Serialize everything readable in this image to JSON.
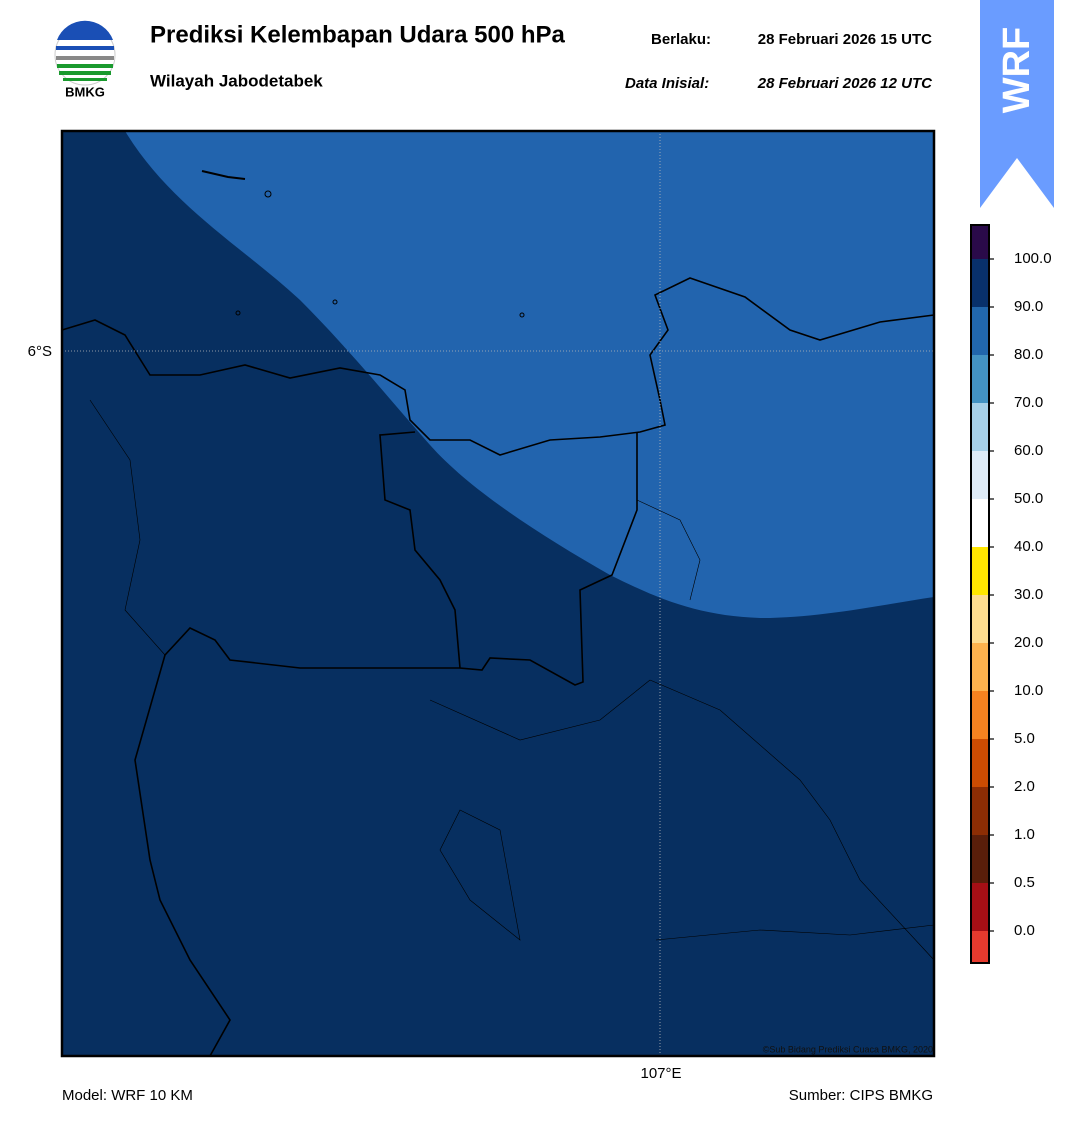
{
  "header": {
    "logo_text": "BMKG",
    "title": "Prediksi Kelembapan Udara 500 hPa",
    "valid_label": "Berlaku:",
    "valid_time": "28 Februari 2026 15 UTC",
    "subtitle": "Wilayah Jabodetabek",
    "init_label": "Data Inisial:",
    "init_time": "28 Februari 2026 12 UTC",
    "badge": "WRF"
  },
  "map": {
    "lat_label": "6°S",
    "lon_label": "107°E",
    "credit": "©Sub Bidang Prediksi Cuaca BMKG, 2020"
  },
  "colorbar": {
    "colors": [
      "#e63a2e",
      "#a50f15",
      "#5a1e0a",
      "#8c2d04",
      "#cc4c02",
      "#f58220",
      "#fdb34e",
      "#fddc8f",
      "#ffe600",
      "#ffffff",
      "#deebf7",
      "#a6d0e8",
      "#4393c3",
      "#2166ac",
      "#08306b",
      "#2a0a4a"
    ],
    "ticks": [
      "0.0",
      "0.5",
      "1.0",
      "2.0",
      "5.0",
      "10.0",
      "20.0",
      "30.0",
      "40.0",
      "50.0",
      "60.0",
      "70.0",
      "80.0",
      "90.0",
      "100.0"
    ]
  },
  "footer": {
    "model": "Model: WRF 10 KM",
    "source": "Sumber: CIPS BMKG"
  }
}
